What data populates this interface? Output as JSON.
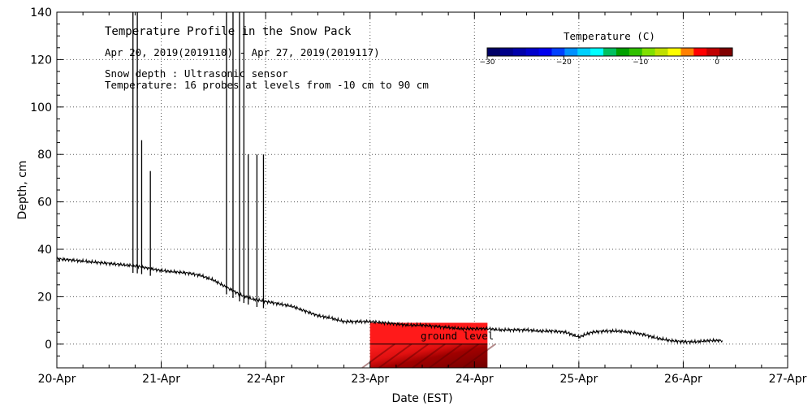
{
  "chart_data": {
    "type": "line",
    "title": "Temperature Profile in the Snow Pack",
    "subtitle": "Apr 20, 2019(2019110) - Apr 27, 2019(2019117)",
    "notes": [
      "Snow depth : Ultrasonic sensor",
      "Temperature: 16 probes at levels from -10 cm to 90 cm"
    ],
    "xlabel": "Date (EST)",
    "ylabel": "Depth, cm",
    "x_ticks": [
      "20-Apr",
      "21-Apr",
      "22-Apr",
      "23-Apr",
      "24-Apr",
      "25-Apr",
      "26-Apr",
      "27-Apr"
    ],
    "xlim": [
      "2019-04-20",
      "2019-04-27"
    ],
    "ylim": [
      -10,
      140
    ],
    "y_ticks": [
      0,
      20,
      40,
      60,
      80,
      100,
      120,
      140
    ],
    "grid": true,
    "ground_level_label": "ground level",
    "series": [
      {
        "values": [
          [
            "2019-04-20T00:00",
            36
          ],
          [
            "2019-04-20T03:00",
            35.5
          ],
          [
            "2019-04-20T06:00",
            35
          ],
          [
            "2019-04-20T09:00",
            34.5
          ],
          [
            "2019-04-20T12:00",
            34
          ],
          [
            "2019-04-20T15:00",
            33.5
          ],
          [
            "2019-04-20T18:00",
            33
          ],
          [
            "2019-04-20T21:00",
            32
          ],
          [
            "2019-04-21T00:00",
            31
          ],
          [
            "2019-04-21T03:00",
            30.5
          ],
          [
            "2019-04-21T06:00",
            30
          ],
          [
            "2019-04-21T09:00",
            29
          ],
          [
            "2019-04-21T12:00",
            27
          ],
          [
            "2019-04-21T15:00",
            24
          ],
          [
            "2019-04-21T18:00",
            21
          ],
          [
            "2019-04-21T21:00",
            19
          ],
          [
            "2019-04-22T00:00",
            18
          ],
          [
            "2019-04-22T03:00",
            17
          ],
          [
            "2019-04-22T06:00",
            16
          ],
          [
            "2019-04-22T09:00",
            14
          ],
          [
            "2019-04-22T12:00",
            12
          ],
          [
            "2019-04-22T15:00",
            11
          ],
          [
            "2019-04-22T18:00",
            9.5
          ],
          [
            "2019-04-22T21:00",
            9.5
          ],
          [
            "2019-04-23T00:00",
            9.5
          ],
          [
            "2019-04-23T03:00",
            9
          ],
          [
            "2019-04-23T06:00",
            8.5
          ],
          [
            "2019-04-23T09:00",
            8
          ],
          [
            "2019-04-23T12:00",
            8
          ],
          [
            "2019-04-23T15:00",
            7.5
          ],
          [
            "2019-04-23T18:00",
            7
          ],
          [
            "2019-04-23T21:00",
            6.5
          ],
          [
            "2019-04-24T00:00",
            6.5
          ],
          [
            "2019-04-24T03:00",
            6.5
          ],
          [
            "2019-04-24T06:00",
            6
          ],
          [
            "2019-04-24T09:00",
            6
          ],
          [
            "2019-04-24T12:00",
            6
          ],
          [
            "2019-04-24T15:00",
            5.5
          ],
          [
            "2019-04-24T18:00",
            5.5
          ],
          [
            "2019-04-24T21:00",
            5
          ],
          [
            "2019-04-25T00:00",
            3
          ],
          [
            "2019-04-25T03:00",
            5
          ],
          [
            "2019-04-25T06:00",
            5.5
          ],
          [
            "2019-04-25T09:00",
            5.5
          ],
          [
            "2019-04-25T12:00",
            5
          ],
          [
            "2019-04-25T15:00",
            4
          ],
          [
            "2019-04-25T18:00",
            2.5
          ],
          [
            "2019-04-25T21:00",
            1.5
          ],
          [
            "2019-04-26T00:00",
            1
          ],
          [
            "2019-04-26T03:00",
            1
          ],
          [
            "2019-04-26T06:00",
            1.5
          ],
          [
            "2019-04-26T09:00",
            1.5
          ]
        ]
      }
    ],
    "spikes": [
      [
        "2019-04-20T17:30",
        140
      ],
      [
        "2019-04-20T18:30",
        140
      ],
      [
        "2019-04-20T19:30",
        86
      ],
      [
        "2019-04-20T21:30",
        73
      ],
      [
        "2019-04-21T15:00",
        140
      ],
      [
        "2019-04-21T16:30",
        140
      ],
      [
        "2019-04-21T18:00",
        140
      ],
      [
        "2019-04-21T19:00",
        140
      ],
      [
        "2019-04-21T20:00",
        80
      ],
      [
        "2019-04-21T22:00",
        80
      ],
      [
        "2019-04-21T23:30",
        80
      ]
    ],
    "temperature_field": {
      "x_range": [
        "2019-04-23T00:00",
        "2019-04-24T03:00"
      ],
      "depth_range": [
        -10,
        9
      ],
      "values": [
        -0.5,
        -0.3,
        0,
        0.2
      ]
    },
    "colorbar": {
      "title": "Temperature (C)",
      "ticks": [
        -30,
        -20,
        -10,
        0
      ],
      "range": [
        -30,
        2
      ],
      "colors": [
        "#000066",
        "#000088",
        "#0000aa",
        "#0000cc",
        "#0000ee",
        "#0040ff",
        "#0090ff",
        "#00d0ff",
        "#00ffff",
        "#00c060",
        "#00a000",
        "#30c000",
        "#80e000",
        "#c0e000",
        "#ffff00",
        "#ff8000",
        "#ff0000",
        "#c00000",
        "#800000"
      ]
    }
  }
}
